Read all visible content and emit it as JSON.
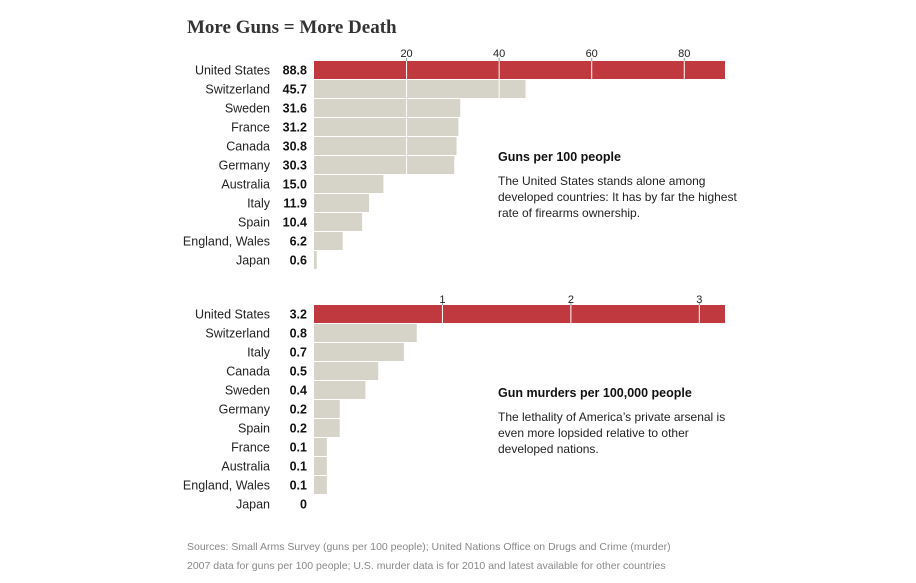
{
  "page": {
    "title": "More Guns = More Death",
    "source_line1": "Sources: Small Arms Survey (guns per 100 people); United Nations Office on Drugs and Crime (murder)",
    "source_line2": "2007 data for guns per 100 people; U.S. murder data is for 2010 and latest available for other countries"
  },
  "colors": {
    "highlight": "#c0393f",
    "bar": "#d6d4c8",
    "grid": "#ffffff"
  },
  "chart_data": [
    {
      "type": "bar",
      "orientation": "horizontal",
      "title": "Guns per 100 people",
      "description": "The United States stands alone among developed countries: It has by far the highest rate of firearms ownership.",
      "categories": [
        "United States",
        "Switzerland",
        "Sweden",
        "France",
        "Canada",
        "Germany",
        "Australia",
        "Italy",
        "Spain",
        "England, Wales",
        "Japan"
      ],
      "values": [
        88.8,
        45.7,
        31.6,
        31.2,
        30.8,
        30.3,
        15.0,
        11.9,
        10.4,
        6.2,
        0.6
      ],
      "value_labels": [
        "88.8",
        "45.7",
        "31.6",
        "31.2",
        "30.8",
        "30.3",
        "15.0",
        "11.9",
        "10.4",
        "6.2",
        "0.6"
      ],
      "ticks": [
        20,
        40,
        60,
        80
      ],
      "xlim": [
        0,
        88.8
      ],
      "highlight": "United States"
    },
    {
      "type": "bar",
      "orientation": "horizontal",
      "title": "Gun murders per 100,000 people",
      "description": "The lethality of America’s private arsenal is even more lopsided relative to other developed nations.",
      "categories": [
        "United States",
        "Switzerland",
        "Italy",
        "Canada",
        "Sweden",
        "Germany",
        "Spain",
        "France",
        "Australia",
        "England, Wales",
        "Japan"
      ],
      "values": [
        3.2,
        0.8,
        0.7,
        0.5,
        0.4,
        0.2,
        0.2,
        0.1,
        0.1,
        0.1,
        0.0
      ],
      "value_labels": [
        "3.2",
        "0.8",
        "0.7",
        "0.5",
        "0.4",
        "0.2",
        "0.2",
        "0.1",
        "0.1",
        "0.1",
        "0"
      ],
      "ticks": [
        1,
        2,
        3
      ],
      "xlim": [
        0,
        3.2
      ],
      "highlight": "United States"
    }
  ]
}
